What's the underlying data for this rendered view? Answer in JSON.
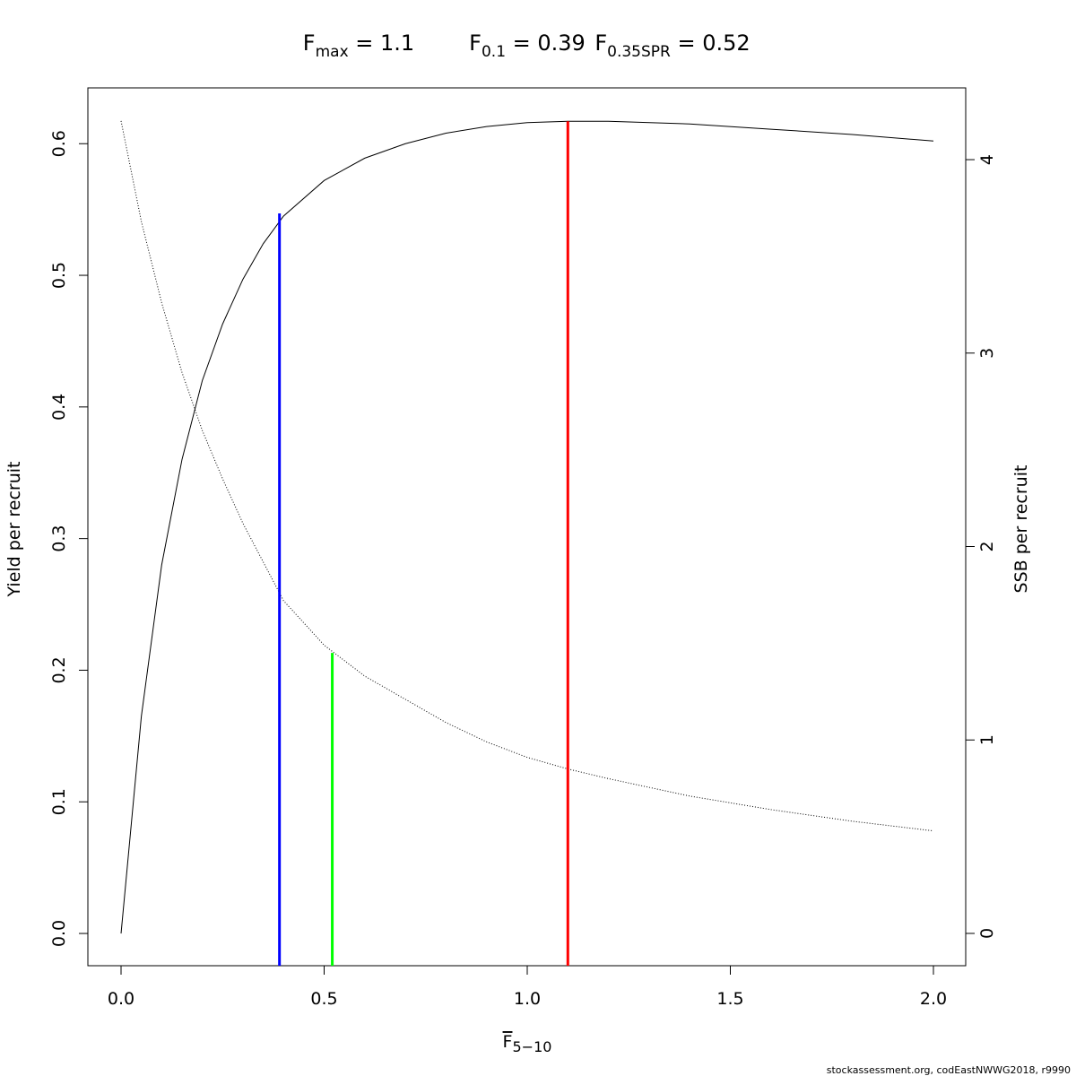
{
  "chart_data": {
    "type": "line",
    "title": [
      {
        "main": "F",
        "sub": "max",
        "rest": " = 1.1"
      },
      {
        "main": "F",
        "sub": "0.1",
        "rest": " = 0.39"
      },
      {
        "main": "F",
        "sub": "0.35SPR",
        "rest": " = 0.52"
      }
    ],
    "x_label": {
      "main": "F",
      "sub": "5−10"
    },
    "y_label": "Yield per recruit",
    "y2_label": "SSB per recruit",
    "footer": "stockassessment.org, codEastNWWG2018, r9990",
    "x": [
      0,
      0.05,
      0.1,
      0.15,
      0.2,
      0.25,
      0.3,
      0.35,
      0.4,
      0.5,
      0.6,
      0.7,
      0.8,
      0.9,
      1.0,
      1.1,
      1.2,
      1.4,
      1.6,
      1.8,
      2.0
    ],
    "series": [
      {
        "name": "Yield per recruit",
        "color": "#000000",
        "style": "solid",
        "values": [
          0,
          0.165,
          0.28,
          0.36,
          0.42,
          0.463,
          0.497,
          0.524,
          0.545,
          0.572,
          0.589,
          0.6,
          0.608,
          0.613,
          0.616,
          0.617,
          0.617,
          0.615,
          0.611,
          0.607,
          0.602
        ]
      },
      {
        "name": "SSB per recruit",
        "color": "#000000",
        "style": "dotted",
        "axis": "y2",
        "values": [
          4.2,
          3.68,
          3.26,
          2.9,
          2.6,
          2.35,
          2.12,
          1.92,
          1.72,
          1.49,
          1.33,
          1.21,
          1.09,
          0.99,
          0.91,
          0.85,
          0.8,
          0.71,
          0.64,
          0.58,
          0.53
        ]
      }
    ],
    "reference_lines": [
      {
        "x": 1.1,
        "top": 0.617,
        "axis": "y",
        "color": "#ff0000"
      },
      {
        "x": 0.39,
        "top": 0.547,
        "axis": "y",
        "color": "#0000ff"
      },
      {
        "x": 0.52,
        "top": 1.45,
        "axis": "y2",
        "color": "#00ff00"
      }
    ],
    "xlim": [
      -0.0817,
      2.0795
    ],
    "xticks": [
      {
        "value": 0,
        "label": "0.0"
      },
      0.5,
      {
        "value": 1,
        "label": "1.0"
      },
      1.5,
      {
        "value": 2,
        "label": "2.0"
      }
    ],
    "ylim": [
      -0.0245,
      0.6424
    ],
    "yticks": [
      {
        "value": 0,
        "label": "0.0"
      },
      0.1,
      0.2,
      0.3,
      0.4,
      0.5,
      0.6
    ],
    "y2lim": [
      -0.167,
      4.371
    ],
    "y2ticks": [
      0,
      1,
      2,
      3,
      4
    ]
  }
}
